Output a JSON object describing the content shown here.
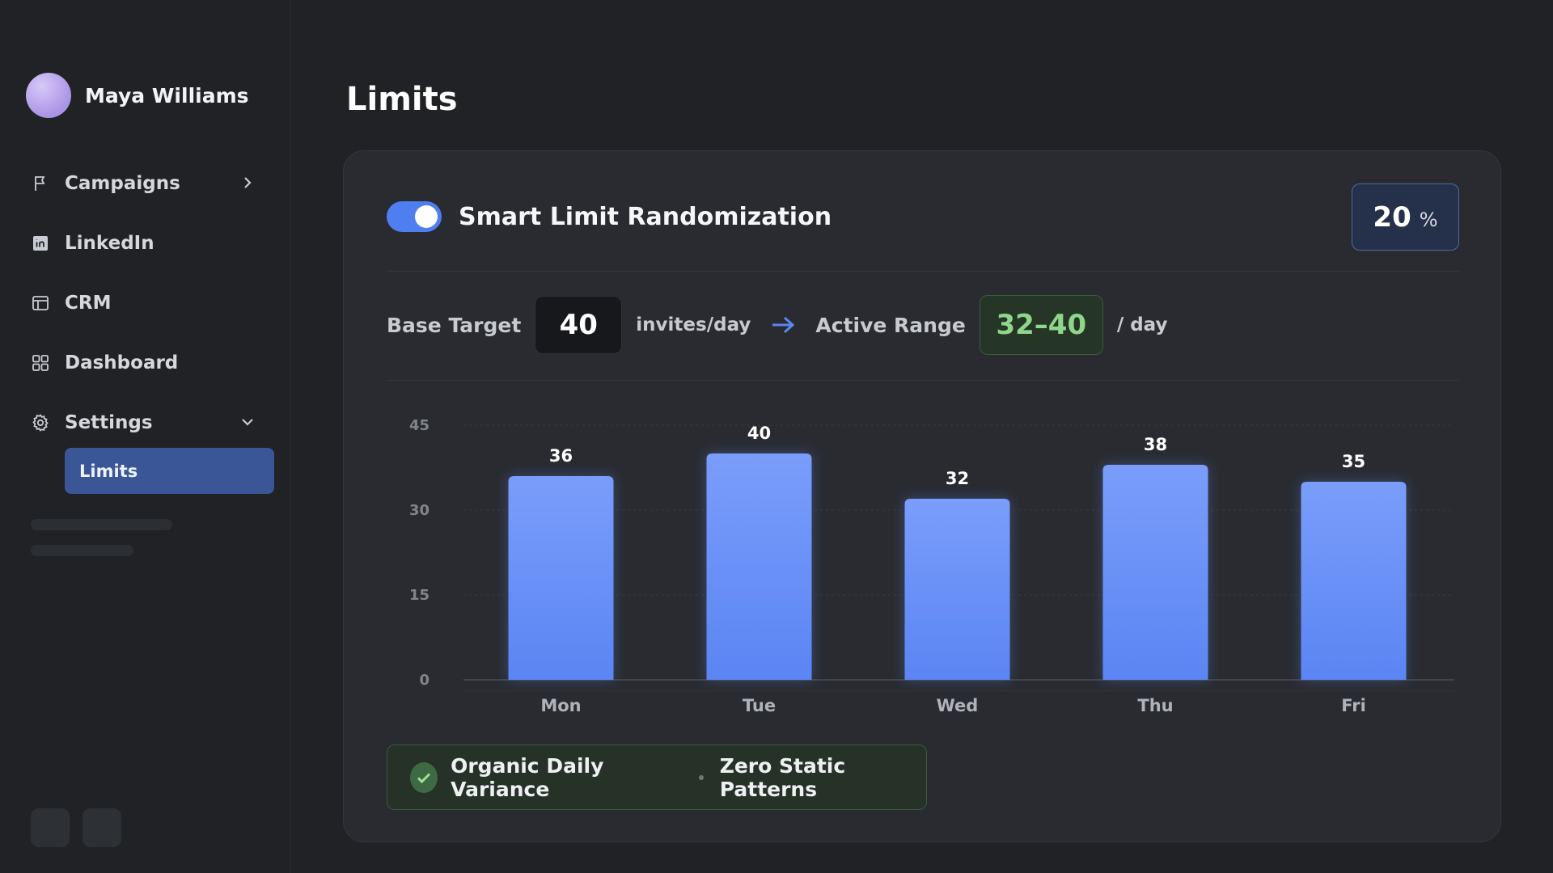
{
  "sidebar": {
    "user": {
      "name": "Maya Williams"
    },
    "items": [
      {
        "label": "Campaigns",
        "icon": "flag-icon",
        "chevron": "chevron-right-icon"
      },
      {
        "label": "LinkedIn",
        "icon": "linkedin-icon"
      },
      {
        "label": "CRM",
        "icon": "table-icon"
      },
      {
        "label": "Dashboard",
        "icon": "grid-icon"
      },
      {
        "label": "Settings",
        "icon": "gear-icon",
        "chevron": "chevron-down-icon"
      }
    ],
    "sub_items": [
      {
        "label": "Limits",
        "active": true
      }
    ]
  },
  "main": {
    "title": "Limits",
    "card": {
      "feature_title": "Smart Limit Randomization",
      "toggle_on": true,
      "randomization_percent": "20",
      "percent_unit": "%",
      "base_target_label": "Base Target",
      "base_target_value": "40",
      "base_target_unit": "invites/day",
      "active_range_label": "Active Range",
      "active_range_value": "32–40",
      "active_range_unit": "/ day",
      "badge": {
        "left": "Organic Daily Variance",
        "right": "Zero Static Patterns"
      }
    }
  },
  "chart_data": {
    "type": "bar",
    "categories": [
      "Mon",
      "Tue",
      "Wed",
      "Thu",
      "Fri"
    ],
    "values": [
      36,
      40,
      32,
      38,
      35
    ],
    "ylim": [
      0,
      45
    ],
    "yticks": [
      0,
      15,
      30,
      45
    ],
    "grid": true,
    "colors": {
      "bar_top": "#7a9dfb",
      "bar_bottom": "#5b85f3"
    }
  }
}
